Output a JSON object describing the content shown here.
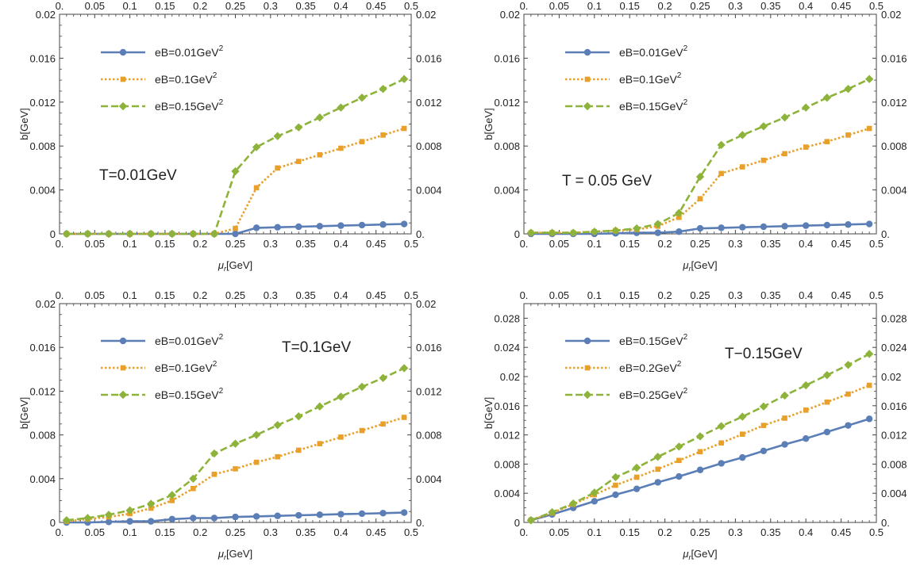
{
  "colors": {
    "blue": "#5a7eb5",
    "orange": "#e8a02a",
    "green": "#8db33a",
    "axis": "#444444"
  },
  "chart_data": [
    {
      "type": "line",
      "annotation": "T=0.01GeV",
      "xlabel": "μr[GeV]",
      "ylabel": "b[GeV]",
      "xlim": [
        0,
        0.5
      ],
      "ylim": [
        0,
        0.02
      ],
      "xticks": [
        0,
        0.05,
        0.1,
        0.15,
        0.2,
        0.25,
        0.3,
        0.35,
        0.4,
        0.45,
        0.5
      ],
      "xtick_labels": [
        "0.",
        "0.05",
        "0.1",
        "0.15",
        "0.2",
        "0.25",
        "0.3",
        "0.35",
        "0.4",
        "0.45",
        "0.5"
      ],
      "yticks": [
        0,
        0.004,
        0.008,
        0.012,
        0.016,
        0.02
      ],
      "ytick_labels": [
        "0",
        "0.004",
        "0.008",
        "0.012",
        "0.016",
        "0.02"
      ],
      "ytick_labels_right": [
        "0.",
        "0.004",
        "0.008",
        "0.012",
        "0.016",
        "0.02"
      ],
      "legend": "top-left",
      "x": [
        0.01,
        0.04,
        0.07,
        0.1,
        0.13,
        0.16,
        0.19,
        0.22,
        0.25,
        0.28,
        0.31,
        0.34,
        0.37,
        0.4,
        0.43,
        0.46,
        0.49
      ],
      "series": [
        {
          "name": "eB=0.01GeV2",
          "name_main": "eB=0.01GeV",
          "name_sup": "2",
          "color": "blue",
          "marker": "circle",
          "dash": "solid",
          "values": [
            0,
            0,
            0,
            0,
            0,
            0,
            0,
            0,
            0,
            0.00055,
            0.0006,
            0.00065,
            0.0007,
            0.00075,
            0.0008,
            0.00085,
            0.0009
          ]
        },
        {
          "name": "eB=0.1GeV2",
          "name_main": "eB=0.1GeV",
          "name_sup": "2",
          "color": "orange",
          "marker": "square",
          "dash": "dotted",
          "values": [
            0,
            0,
            0,
            0,
            0,
            0,
            0,
            0,
            0.0005,
            0.0042,
            0.006,
            0.0066,
            0.0072,
            0.0078,
            0.0084,
            0.009,
            0.0096
          ]
        },
        {
          "name": "eB=0.15GeV2",
          "name_main": "eB=0.15GeV",
          "name_sup": "2",
          "color": "green",
          "marker": "diamond",
          "dash": "dashed",
          "values": [
            0,
            0,
            0,
            0,
            0,
            0,
            0,
            0,
            0.0057,
            0.0079,
            0.0089,
            0.0097,
            0.0106,
            0.0115,
            0.0124,
            0.0132,
            0.0141
          ]
        }
      ]
    },
    {
      "type": "line",
      "annotation": "T = 0.05 GeV",
      "xlabel": "μr[GeV]",
      "ylabel": "b[GeV]",
      "xlim": [
        0,
        0.5
      ],
      "ylim": [
        0,
        0.02
      ],
      "xticks": [
        0,
        0.05,
        0.1,
        0.15,
        0.2,
        0.25,
        0.3,
        0.35,
        0.4,
        0.45,
        0.5
      ],
      "xtick_labels": [
        "0.",
        "0.05",
        "0.1",
        "0.15",
        "0.2",
        "0.25",
        "0.3",
        "0.35",
        "0.4",
        "0.45",
        "0.5"
      ],
      "yticks": [
        0,
        0.004,
        0.008,
        0.012,
        0.016,
        0.02
      ],
      "ytick_labels": [
        "0",
        "0.004",
        "0.008",
        "0.012",
        "0.016",
        "0.02"
      ],
      "ytick_labels_right": [
        "0.",
        "0.004",
        "0.008",
        "0.012",
        "0.016",
        "0.02"
      ],
      "legend": "top-left",
      "x": [
        0.01,
        0.04,
        0.07,
        0.1,
        0.13,
        0.16,
        0.19,
        0.22,
        0.25,
        0.28,
        0.31,
        0.34,
        0.37,
        0.4,
        0.43,
        0.46,
        0.49
      ],
      "series": [
        {
          "name": "eB=0.01GeV2",
          "name_main": "eB=0.01GeV",
          "name_sup": "2",
          "color": "blue",
          "marker": "circle",
          "dash": "solid",
          "values": [
            0,
            0,
            0,
            0,
            5e-05,
            0.0001,
            0.0001,
            0.0002,
            0.0005,
            0.00055,
            0.0006,
            0.00065,
            0.0007,
            0.00075,
            0.0008,
            0.00085,
            0.0009
          ]
        },
        {
          "name": "eB=0.1GeV2",
          "name_main": "eB=0.1GeV",
          "name_sup": "2",
          "color": "orange",
          "marker": "square",
          "dash": "dotted",
          "values": [
            0.0001,
            0.0001,
            0.0001,
            0.0002,
            0.0003,
            0.0004,
            0.0007,
            0.0015,
            0.0032,
            0.0055,
            0.0061,
            0.0067,
            0.0073,
            0.0079,
            0.0084,
            0.009,
            0.0096
          ]
        },
        {
          "name": "eB=0.15GeV2",
          "name_main": "eB=0.15GeV",
          "name_sup": "2",
          "color": "green",
          "marker": "diamond",
          "dash": "dashed",
          "values": [
            0.0001,
            0.0001,
            0.0001,
            0.0002,
            0.0003,
            0.0005,
            0.0009,
            0.0019,
            0.0052,
            0.0081,
            0.009,
            0.0098,
            0.0106,
            0.0115,
            0.0124,
            0.0132,
            0.0141
          ]
        }
      ]
    },
    {
      "type": "line",
      "annotation": "T=0.1GeV",
      "xlabel": "μr[GeV]",
      "ylabel": "b[GeV]",
      "xlim": [
        0,
        0.5
      ],
      "ylim": [
        0,
        0.02
      ],
      "xticks": [
        0,
        0.05,
        0.1,
        0.15,
        0.2,
        0.25,
        0.3,
        0.35,
        0.4,
        0.45,
        0.5
      ],
      "xtick_labels": [
        "0.",
        "0.05",
        "0.1",
        "0.15",
        "0.2",
        "0.25",
        "0.3",
        "0.35",
        "0.4",
        "0.45",
        "0.5"
      ],
      "yticks": [
        0,
        0.004,
        0.008,
        0.012,
        0.016,
        0.02
      ],
      "ytick_labels": [
        "0",
        "0.004",
        "0.008",
        "0.012",
        "0.016",
        "0.02"
      ],
      "ytick_labels_right": [
        "0.",
        "0.004",
        "0.008",
        "0.012",
        "0.016",
        "0.02"
      ],
      "legend": "top-left",
      "x": [
        0.01,
        0.04,
        0.07,
        0.1,
        0.13,
        0.16,
        0.19,
        0.22,
        0.25,
        0.28,
        0.31,
        0.34,
        0.37,
        0.4,
        0.43,
        0.46,
        0.49
      ],
      "series": [
        {
          "name": "eB=0.01GeV2",
          "name_main": "eB=0.01GeV",
          "name_sup": "2",
          "color": "blue",
          "marker": "circle",
          "dash": "solid",
          "values": [
            0,
            0,
            5e-05,
            0.0001,
            0.0001,
            0.0003,
            0.0004,
            0.0004,
            0.0005,
            0.00055,
            0.0006,
            0.00065,
            0.0007,
            0.00075,
            0.0008,
            0.00085,
            0.0009
          ]
        },
        {
          "name": "eB=0.1GeV2",
          "name_main": "eB=0.1GeV",
          "name_sup": "2",
          "color": "orange",
          "marker": "square",
          "dash": "dotted",
          "values": [
            0.0001,
            0.0003,
            0.0005,
            0.0008,
            0.0013,
            0.002,
            0.0031,
            0.0044,
            0.0049,
            0.0055,
            0.006,
            0.0066,
            0.0072,
            0.0078,
            0.0084,
            0.009,
            0.0096
          ]
        },
        {
          "name": "eB=0.15GeV2",
          "name_main": "eB=0.15GeV",
          "name_sup": "2",
          "color": "green",
          "marker": "diamond",
          "dash": "dashed",
          "values": [
            0.0002,
            0.0004,
            0.0007,
            0.0011,
            0.0017,
            0.0025,
            0.004,
            0.0063,
            0.0072,
            0.008,
            0.0089,
            0.0097,
            0.0106,
            0.0115,
            0.0124,
            0.0132,
            0.0141
          ]
        }
      ]
    },
    {
      "type": "line",
      "annotation": "T−0.15GeV",
      "xlabel": "μr[GeV]",
      "ylabel": "b[GeV]",
      "xlim": [
        0,
        0.5
      ],
      "ylim": [
        0,
        0.03
      ],
      "xticks": [
        0,
        0.05,
        0.1,
        0.15,
        0.2,
        0.25,
        0.3,
        0.35,
        0.4,
        0.45,
        0.5
      ],
      "xtick_labels": [
        "0.",
        "0.05",
        "0.1",
        "0.15",
        "0.2",
        "0.25",
        "0.3",
        "0.35",
        "0.4",
        "0.45",
        "0.5"
      ],
      "yticks": [
        0,
        0.004,
        0.008,
        0.012,
        0.016,
        0.02,
        0.024,
        0.028
      ],
      "ytick_labels": [
        "0",
        "0.004",
        "0.008",
        "0.012",
        "0.016",
        "0.02",
        "0.024",
        "0.028"
      ],
      "ytick_labels_right": [
        "0.",
        "0.004",
        "0.008",
        "0.012",
        "0.016",
        "0.02",
        "0.024",
        "0.028"
      ],
      "legend": "top-left",
      "x": [
        0.01,
        0.04,
        0.07,
        0.1,
        0.13,
        0.16,
        0.19,
        0.22,
        0.25,
        0.28,
        0.31,
        0.34,
        0.37,
        0.4,
        0.43,
        0.46,
        0.49
      ],
      "series": [
        {
          "name": "eB=0.15GeV2",
          "name_main": "eB=0.15GeV",
          "name_sup": "2",
          "color": "blue",
          "marker": "circle",
          "dash": "solid",
          "values": [
            0.0003,
            0.0011,
            0.002,
            0.0029,
            0.0038,
            0.0046,
            0.0055,
            0.0063,
            0.0072,
            0.0081,
            0.0089,
            0.0098,
            0.0107,
            0.0115,
            0.0124,
            0.0133,
            0.0142
          ]
        },
        {
          "name": "eB=0.2GeV2",
          "name_main": "eB=0.2GeV",
          "name_sup": "2",
          "color": "orange",
          "marker": "square",
          "dash": "dotted",
          "values": [
            0.0003,
            0.0013,
            0.0025,
            0.0038,
            0.0051,
            0.0062,
            0.0073,
            0.0085,
            0.0097,
            0.0109,
            0.0121,
            0.0133,
            0.0143,
            0.0154,
            0.0165,
            0.0176,
            0.0188
          ]
        },
        {
          "name": "eB=0.25GeV2",
          "name_main": "eB=0.25GeV",
          "name_sup": "2",
          "color": "green",
          "marker": "diamond",
          "dash": "dashed",
          "values": [
            0.0003,
            0.0014,
            0.0026,
            0.0041,
            0.0062,
            0.0075,
            0.009,
            0.0104,
            0.0118,
            0.0132,
            0.0145,
            0.0159,
            0.0174,
            0.0188,
            0.0202,
            0.0216,
            0.0231
          ]
        }
      ]
    }
  ]
}
